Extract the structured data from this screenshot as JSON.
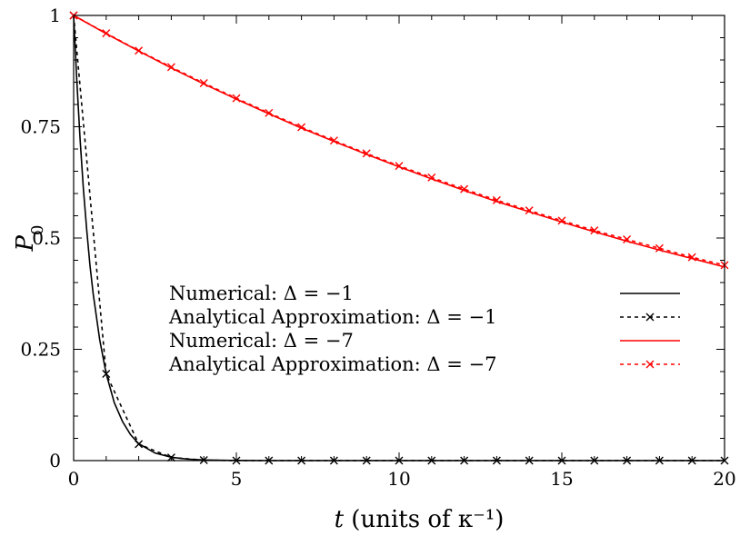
{
  "chart_data": {
    "type": "line",
    "xlabel": "t (units of κ⁻¹)",
    "ylabel": "P0",
    "xlim": [
      0,
      20
    ],
    "ylim": [
      0,
      1
    ],
    "xticks": [
      0,
      5,
      10,
      15,
      20
    ],
    "xtick_labels": [
      "0",
      "5",
      "10",
      "15",
      "20"
    ],
    "yticks": [
      0,
      0.25,
      0.5,
      0.75,
      1
    ],
    "ytick_labels": [
      "0",
      "0.25",
      "0.5",
      "0.75",
      "1"
    ],
    "grid": false,
    "legend_position": "center",
    "series": [
      {
        "name": "Numerical: Δ = −1",
        "color": "#000000",
        "style": "solid",
        "marker": "none",
        "x": [
          0,
          0.1,
          0.2,
          0.3,
          0.4,
          0.5,
          0.6,
          0.8,
          1.0,
          1.25,
          1.5,
          1.75,
          2.0,
          2.5,
          3.0,
          3.5,
          4.0,
          5.0,
          6.0,
          8.0,
          10.0,
          12.0,
          14.0,
          16.0,
          18.0,
          20.0
        ],
        "y": [
          1.0,
          0.85,
          0.72,
          0.61,
          0.52,
          0.44,
          0.375,
          0.272,
          0.195,
          0.13,
          0.088,
          0.058,
          0.038,
          0.017,
          0.0075,
          0.0033,
          0.0015,
          0.0003,
          0.0,
          0.0,
          0.0,
          0.0,
          0.0,
          0.0,
          0.0,
          0.0
        ]
      },
      {
        "name": "Analytical Approximation: Δ = −1",
        "color": "#000000",
        "style": "dashed",
        "marker": "x",
        "x": [
          0,
          1,
          2,
          3,
          4,
          5,
          6,
          7,
          8,
          9,
          10,
          11,
          12,
          13,
          14,
          15,
          16,
          17,
          18,
          19,
          20
        ],
        "y": [
          1.0,
          0.195,
          0.037,
          0.007,
          0.001,
          0.0,
          0.0,
          0.0,
          0.0,
          0.0,
          0.0,
          0.0,
          0.0,
          0.0,
          0.0,
          0.0,
          0.0,
          0.0,
          0.0,
          0.0,
          0.0
        ]
      },
      {
        "name": "Numerical: Δ = −7",
        "color": "#ff0000",
        "style": "solid",
        "marker": "none",
        "x": [
          0,
          1,
          2,
          3,
          4,
          5,
          6,
          7,
          8,
          9,
          10,
          11,
          12,
          13,
          14,
          15,
          16,
          17,
          18,
          19,
          20
        ],
        "y": [
          1.0,
          0.959,
          0.92,
          0.882,
          0.846,
          0.812,
          0.779,
          0.747,
          0.717,
          0.688,
          0.66,
          0.633,
          0.607,
          0.582,
          0.559,
          0.536,
          0.514,
          0.493,
          0.473,
          0.454,
          0.435
        ]
      },
      {
        "name": "Analytical Approximation: Δ = −7",
        "color": "#ff0000",
        "style": "dashed",
        "marker": "x",
        "x": [
          0,
          1,
          2,
          3,
          4,
          5,
          6,
          7,
          8,
          9,
          10,
          11,
          12,
          13,
          14,
          15,
          16,
          17,
          18,
          19,
          20
        ],
        "y": [
          1.0,
          0.96,
          0.921,
          0.884,
          0.848,
          0.814,
          0.781,
          0.749,
          0.719,
          0.69,
          0.662,
          0.636,
          0.61,
          0.585,
          0.562,
          0.539,
          0.517,
          0.497,
          0.477,
          0.457,
          0.439
        ]
      }
    ]
  }
}
